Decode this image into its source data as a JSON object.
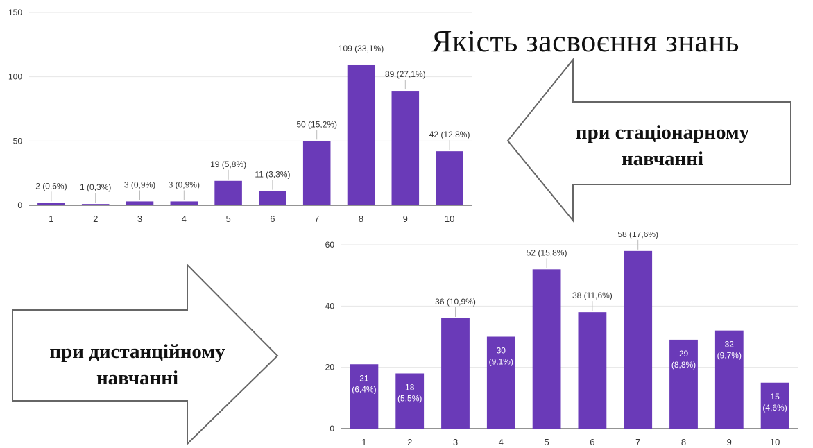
{
  "title": "Якість засвоєння знань",
  "arrow_stationary": {
    "line1": "при стаціонарному",
    "line2": "навчанні"
  },
  "arrow_distance": {
    "line1": "при дистанційному",
    "line2": "навчанні"
  },
  "colors": {
    "bar": "#6a3ab8",
    "axis": "#555555",
    "grid": "#e6e6e6",
    "label": "#333333"
  },
  "chart_data": [
    {
      "type": "bar",
      "categories": [
        "1",
        "2",
        "3",
        "4",
        "5",
        "6",
        "7",
        "8",
        "9",
        "10"
      ],
      "values": [
        2,
        1,
        3,
        3,
        19,
        11,
        50,
        109,
        89,
        42
      ],
      "data_labels": [
        "2 (0,6%)",
        "1 (0,3%)",
        "3 (0,9%)",
        "3 (0,9%)",
        "19 (5,8%)",
        "11 (3,3%)",
        "50 (15,2%)",
        "109 (33,1%)",
        "89 (27,1%)",
        "42 (12,8%)"
      ],
      "yticks": [
        0,
        50,
        100,
        150
      ],
      "ylim": [
        0,
        150
      ],
      "grid": true
    },
    {
      "type": "bar",
      "categories": [
        "1",
        "2",
        "3",
        "4",
        "5",
        "6",
        "7",
        "8",
        "9",
        "10"
      ],
      "values": [
        21,
        18,
        36,
        30,
        52,
        38,
        58,
        29,
        32,
        15
      ],
      "data_labels": [
        "21 (6,4%)",
        "18 (5,5%)",
        "36 (10,9%)",
        "30 (9,1%)",
        "52 (15,8%)",
        "38 (11,6%)",
        "58 (17,6%)",
        "29 (8,8%)",
        "32 (9,7%)",
        "15 (4,6%)"
      ],
      "yticks": [
        0,
        20,
        40,
        60
      ],
      "ylim": [
        0,
        60
      ],
      "grid": true
    }
  ]
}
